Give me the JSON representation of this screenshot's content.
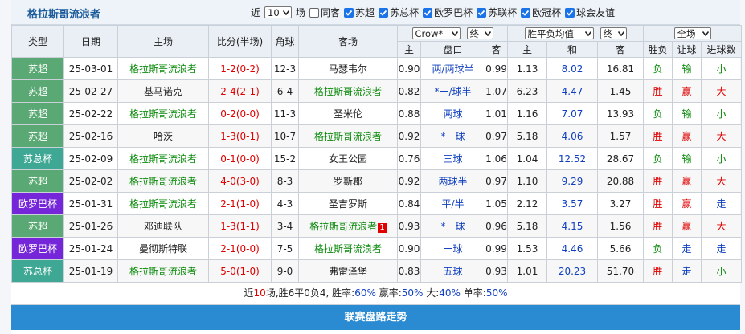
{
  "header": {
    "title": "格拉斯哥流浪者",
    "recent_prefix": "近",
    "recent_count": "10",
    "recent_suffix": "场",
    "filters": [
      {
        "label": "同客",
        "checked": false
      },
      {
        "label": "苏超",
        "checked": true
      },
      {
        "label": "苏总杯",
        "checked": true
      },
      {
        "label": "欧罗巴杯",
        "checked": true
      },
      {
        "label": "苏联杯",
        "checked": true
      },
      {
        "label": "欧冠杯",
        "checked": true
      },
      {
        "label": "球会友谊",
        "checked": true
      }
    ]
  },
  "table": {
    "columns": [
      "类型",
      "日期",
      "主场",
      "比分(半场)",
      "角球",
      "客场"
    ],
    "selects": [
      "Crow*",
      "终",
      "胜平负均值",
      "终",
      "全场"
    ],
    "subcolumns": [
      "主",
      "盘口",
      "客",
      "主",
      "和",
      "客",
      "胜负",
      "让球",
      "进球数"
    ],
    "rows": [
      {
        "type": "苏超",
        "type_color": "#5aa873",
        "date": "25-03-01",
        "home": "格拉斯哥流浪者",
        "score": "1-2(0-2)",
        "corners": "12-3",
        "away": "马瑟韦尔",
        "handicap": [
          "0.90",
          "两/两球半",
          "0.99"
        ],
        "euro": [
          "1.13",
          "8.02",
          "16.81"
        ],
        "results": [
          "负",
          "输",
          "小"
        ],
        "result_colors": [
          "#0a8a0a",
          "#0a8a0a",
          "#0a8a0a"
        ]
      },
      {
        "type": "苏超",
        "type_color": "#5aa873",
        "date": "25-02-27",
        "home": "基马诺克",
        "score": "2-4(2-1)",
        "corners": "6-4",
        "away": "格拉斯哥流浪者",
        "handicap": [
          "0.82",
          "*一/球半",
          "1.07"
        ],
        "euro": [
          "6.23",
          "4.47",
          "1.45"
        ],
        "results": [
          "胜",
          "赢",
          "大"
        ],
        "result_colors": [
          "#e00000",
          "#e00000",
          "#e00000"
        ]
      },
      {
        "type": "苏超",
        "type_color": "#5aa873",
        "date": "25-02-22",
        "home": "格拉斯哥流浪者",
        "score": "0-2(0-0)",
        "corners": "11-3",
        "away": "圣米伦",
        "handicap": [
          "0.88",
          "两球",
          "1.01"
        ],
        "euro": [
          "1.16",
          "7.07",
          "13.93"
        ],
        "results": [
          "负",
          "输",
          "小"
        ],
        "result_colors": [
          "#0a8a0a",
          "#0a8a0a",
          "#0a8a0a"
        ]
      },
      {
        "type": "苏超",
        "type_color": "#5aa873",
        "date": "25-02-16",
        "home": "哈茨",
        "score": "1-3(0-1)",
        "corners": "10-7",
        "away": "格拉斯哥流浪者",
        "handicap": [
          "0.92",
          "*一球",
          "0.97"
        ],
        "euro": [
          "5.18",
          "4.06",
          "1.57"
        ],
        "results": [
          "胜",
          "赢",
          "大"
        ],
        "result_colors": [
          "#e00000",
          "#e00000",
          "#e00000"
        ]
      },
      {
        "type": "苏总杯",
        "type_color": "#3fa894",
        "date": "25-02-09",
        "home": "格拉斯哥流浪者",
        "score": "0-1(0-0)",
        "corners": "15-2",
        "away": "女王公园",
        "handicap": [
          "0.76",
          "三球",
          "1.06"
        ],
        "euro": [
          "1.04",
          "12.52",
          "28.67"
        ],
        "results": [
          "负",
          "输",
          "小"
        ],
        "result_colors": [
          "#0a8a0a",
          "#0a8a0a",
          "#0a8a0a"
        ]
      },
      {
        "type": "苏超",
        "type_color": "#5aa873",
        "date": "25-02-02",
        "home": "格拉斯哥流浪者",
        "score": "4-0(3-0)",
        "corners": "8-3",
        "away": "罗斯郡",
        "handicap": [
          "0.92",
          "两球半",
          "0.97"
        ],
        "euro": [
          "1.10",
          "9.29",
          "20.88"
        ],
        "results": [
          "胜",
          "赢",
          "大"
        ],
        "result_colors": [
          "#e00000",
          "#e00000",
          "#e00000"
        ]
      },
      {
        "type": "欧罗巴杯",
        "type_color": "#7426d8",
        "date": "25-01-31",
        "home": "格拉斯哥流浪者",
        "score": "2-1(1-0)",
        "corners": "4-3",
        "away": "圣吉罗斯",
        "handicap": [
          "0.84",
          "平/半",
          "1.05"
        ],
        "euro": [
          "2.12",
          "3.57",
          "3.27"
        ],
        "results": [
          "胜",
          "赢",
          "走"
        ],
        "result_colors": [
          "#e00000",
          "#e00000",
          "#1040c0"
        ]
      },
      {
        "type": "苏超",
        "type_color": "#5aa873",
        "date": "25-01-26",
        "home": "邓迪联队",
        "score": "1-3(1-1)",
        "corners": "3-4",
        "away": "格拉斯哥流浪者",
        "away_badge": "1",
        "handicap": [
          "0.93",
          "*一球",
          "0.96"
        ],
        "euro": [
          "5.18",
          "4.15",
          "1.56"
        ],
        "results": [
          "胜",
          "赢",
          "大"
        ],
        "result_colors": [
          "#e00000",
          "#e00000",
          "#e00000"
        ]
      },
      {
        "type": "欧罗巴杯",
        "type_color": "#7426d8",
        "date": "25-01-24",
        "home": "曼彻斯特联",
        "score": "2-1(0-0)",
        "corners": "7-5",
        "away": "格拉斯哥流浪者",
        "handicap": [
          "0.90",
          "一球",
          "0.99"
        ],
        "euro": [
          "1.53",
          "4.46",
          "5.66"
        ],
        "results": [
          "负",
          "走",
          "走"
        ],
        "result_colors": [
          "#0a8a0a",
          "#1040c0",
          "#1040c0"
        ]
      },
      {
        "type": "苏总杯",
        "type_color": "#3fa894",
        "date": "25-01-19",
        "home": "格拉斯哥流浪者",
        "score": "5-0(1-0)",
        "corners": "9-0",
        "away": "弗雷泽堡",
        "handicap": [
          "0.83",
          "五球",
          "0.93"
        ],
        "euro": [
          "1.01",
          "20.23",
          "51.70"
        ],
        "results": [
          "胜",
          "走",
          "小"
        ],
        "result_colors": [
          "#e00000",
          "#1040c0",
          "#0a8a0a"
        ]
      }
    ]
  },
  "summary": [
    "近",
    "10",
    "场,胜6平0负4, 胜率:",
    "60%",
    " 赢率:",
    "50%",
    " 大:",
    "40%",
    " 单率:",
    "50%"
  ],
  "footer": "联赛盘路走势"
}
